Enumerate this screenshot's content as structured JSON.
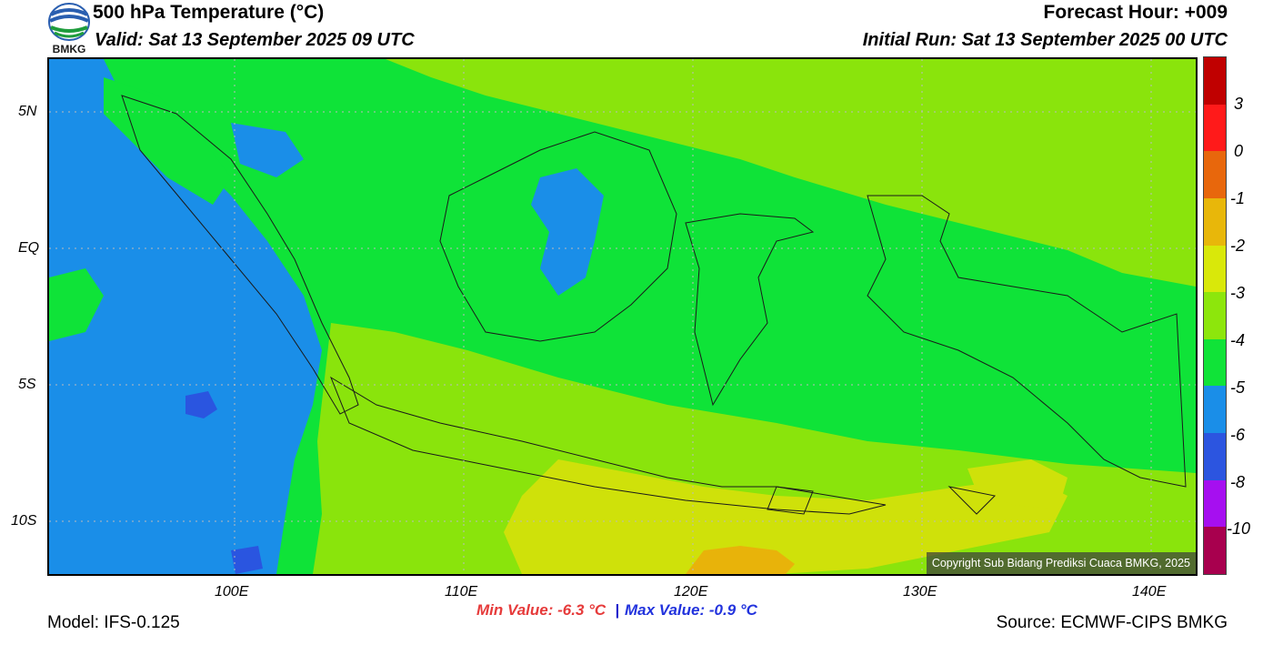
{
  "header": {
    "title": "500 hPa Temperature (°C)",
    "valid": "Valid: Sat 13 September 2025 09 UTC",
    "forecast_hour": "Forecast Hour: +009",
    "initial_run": "Initial Run: Sat 13 September 2025 00 UTC",
    "logo_text": "BMKG"
  },
  "map": {
    "lat_labels": [
      "5N",
      "EQ",
      "5S",
      "10S"
    ],
    "lon_labels": [
      "100E",
      "110E",
      "120E",
      "130E",
      "140E"
    ],
    "copyright": "Copyright Sub Bidang Prediksi Cuaca BMKG, 2025",
    "colors": {
      "background": "#0fe338",
      "cold": "#1a8ee8",
      "colder": "#2a55e0",
      "warm": "#8ae40c",
      "warmer": "#cfe10a",
      "warmest": "#e8b30a"
    }
  },
  "colorbar": {
    "labels": [
      "3",
      "0",
      "-1",
      "-2",
      "-3",
      "-4",
      "-5",
      "-6",
      "-8",
      "-10"
    ],
    "colors": [
      "#c00000",
      "#ff1a1a",
      "#e8670c",
      "#e8b70a",
      "#d9e80a",
      "#8de60c",
      "#10e338",
      "#1a8ee8",
      "#2c55e0",
      "#a60ff0",
      "#a8004e"
    ]
  },
  "footer": {
    "min_value": "Min Value: -6.3 °C",
    "separator": "|",
    "max_value": "Max Value: -0.9 °C",
    "model": "Model: IFS-0.125",
    "source": "Source: ECMWF-CIPS BMKG"
  }
}
